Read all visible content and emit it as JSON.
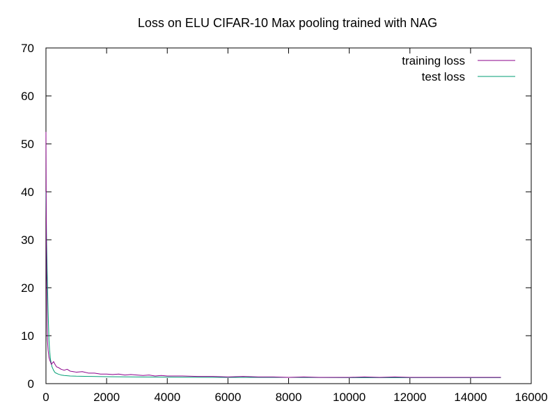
{
  "chart_data": {
    "type": "line",
    "title": "Loss on ELU CIFAR-10 Max pooling trained with NAG",
    "xlabel": "",
    "ylabel": "",
    "xlim": [
      0,
      16000
    ],
    "ylim": [
      0,
      70
    ],
    "x_ticks": [
      0,
      2000,
      4000,
      6000,
      8000,
      10000,
      12000,
      14000,
      16000
    ],
    "y_ticks": [
      0,
      10,
      20,
      30,
      40,
      50,
      60,
      70
    ],
    "grid": false,
    "legend_position": "top-right",
    "series": [
      {
        "name": "training loss",
        "color": "#8b008b",
        "x": [
          0,
          10,
          20,
          30,
          40,
          50,
          60,
          70,
          80,
          100,
          120,
          150,
          180,
          200,
          250,
          300,
          350,
          400,
          500,
          600,
          700,
          800,
          900,
          1000,
          1200,
          1400,
          1600,
          1800,
          2000,
          2200,
          2400,
          2600,
          2800,
          3000,
          3200,
          3400,
          3600,
          3800,
          4000,
          4500,
          5000,
          5500,
          6000,
          6500,
          7000,
          7500,
          8000,
          8500,
          9000,
          9500,
          10000,
          10500,
          11000,
          11500,
          12000,
          12500,
          13000,
          13500,
          14000,
          14500,
          15000
        ],
        "y": [
          52.5,
          35,
          23.5,
          18,
          12,
          9,
          8,
          7,
          6.5,
          5.5,
          5,
          4.5,
          4,
          4.2,
          4.6,
          4,
          3.5,
          3.4,
          3,
          2.8,
          3,
          2.6,
          2.5,
          2.4,
          2.5,
          2.2,
          2.2,
          2.0,
          2.0,
          1.9,
          2.0,
          1.8,
          1.9,
          1.8,
          1.7,
          1.8,
          1.6,
          1.7,
          1.6,
          1.6,
          1.5,
          1.5,
          1.4,
          1.5,
          1.4,
          1.4,
          1.3,
          1.4,
          1.3,
          1.3,
          1.3,
          1.4,
          1.3,
          1.4,
          1.3,
          1.3,
          1.3,
          1.3,
          1.3,
          1.3,
          1.3
        ]
      },
      {
        "name": "test loss",
        "color": "#009e73",
        "x": [
          0,
          10,
          20,
          40,
          60,
          80,
          100,
          120,
          150,
          200,
          250,
          300,
          400,
          500,
          600,
          800,
          1000,
          1500,
          2000,
          3000,
          4000,
          6000,
          8000,
          10000,
          12000,
          14000,
          15000
        ],
        "y": [
          40,
          35,
          30,
          24,
          18,
          13,
          9,
          7,
          5,
          3.5,
          2.8,
          2.3,
          2.0,
          1.8,
          1.7,
          1.6,
          1.55,
          1.5,
          1.45,
          1.4,
          1.35,
          1.3,
          1.3,
          1.25,
          1.25,
          1.25,
          1.25
        ]
      }
    ]
  }
}
